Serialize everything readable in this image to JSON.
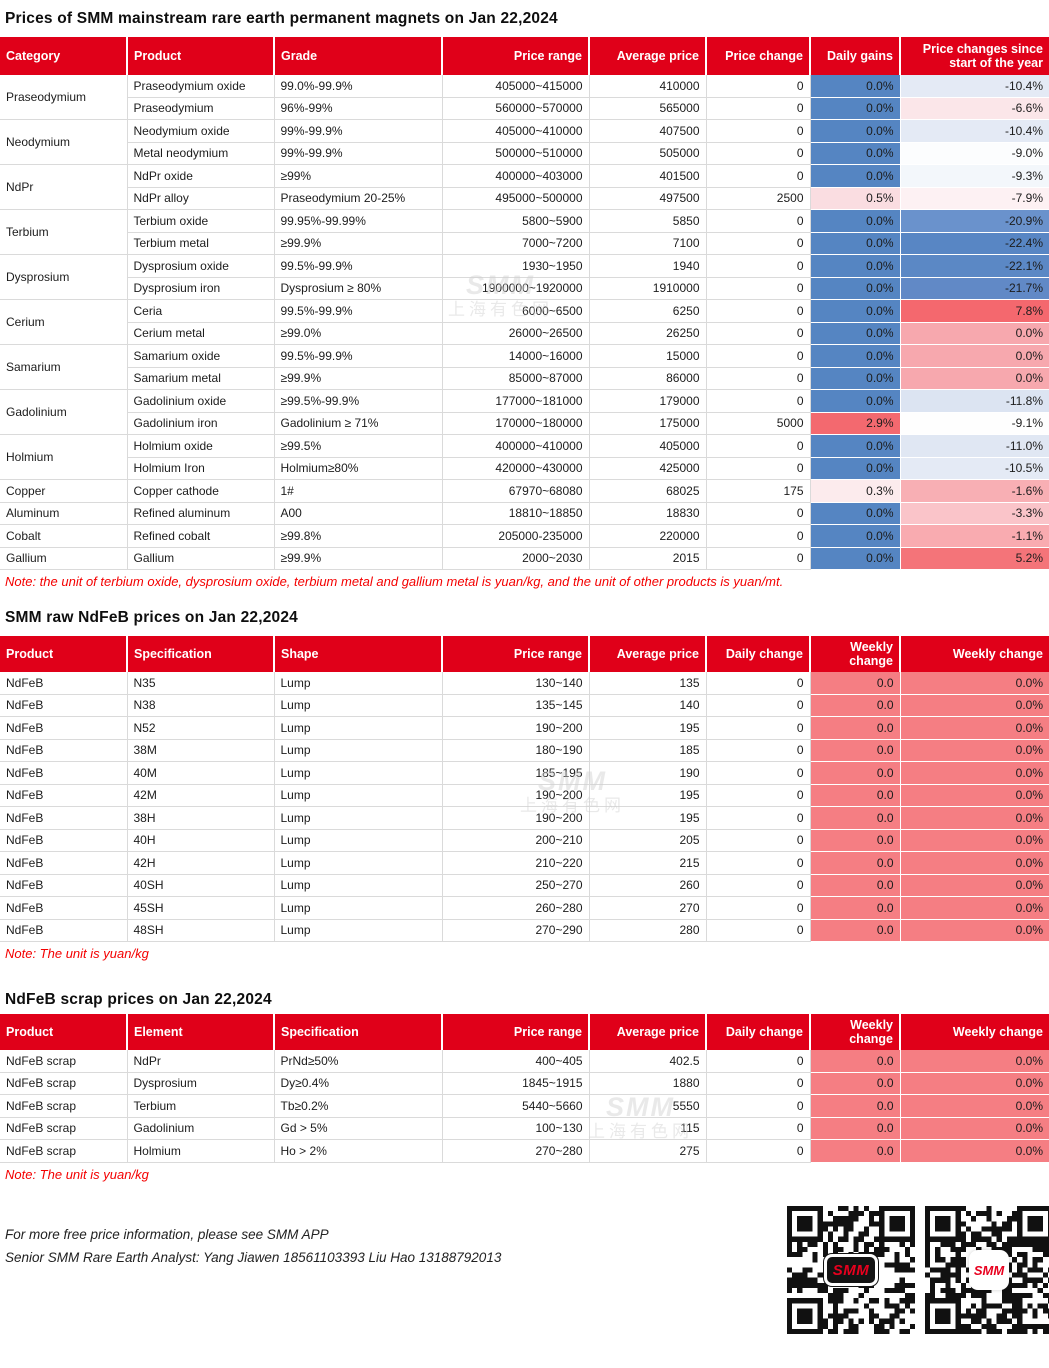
{
  "colors": {
    "header_bg": "#E00019",
    "blue_cell": "#5585C2",
    "salmon_cell": "#F57E83",
    "note_red": "#F40000"
  },
  "watermark": {
    "line1": "SMM",
    "line2": "上海有色网"
  },
  "table1": {
    "title": "Prices of SMM mainstream rare earth permanent magnets on Jan 22,2024",
    "columns": [
      "Category",
      "Product",
      "Grade",
      "Price range",
      "Average price",
      "Price change",
      "Daily gains",
      "Price changes since start of the year"
    ],
    "rows": [
      {
        "category": "Praseodymium",
        "rowspan": 2,
        "product": "Praseodymium oxide",
        "grade": "99.0%-99.9%",
        "price_range": "405000~415000",
        "average_price": "410000",
        "price_change": "0",
        "daily_gain": "0.0%",
        "daily_gain_color": "#5585C2",
        "ytd_change": "-10.4%",
        "ytd_color": "#E4EAF5"
      },
      {
        "product": "Praseodymium",
        "grade": "96%-99%",
        "price_range": "560000~570000",
        "average_price": "565000",
        "price_change": "0",
        "daily_gain": "0.0%",
        "daily_gain_color": "#5585C2",
        "ytd_change": "-6.6%",
        "ytd_color": "#FBE6E9"
      },
      {
        "category": "Neodymium",
        "rowspan": 2,
        "product": "Neodymium oxide",
        "grade": "99%-99.9%",
        "price_range": "405000~410000",
        "average_price": "407500",
        "price_change": "0",
        "daily_gain": "0.0%",
        "daily_gain_color": "#5585C2",
        "ytd_change": "-10.4%",
        "ytd_color": "#E4EAF5"
      },
      {
        "product": "Metal neodymium",
        "grade": "99%-99.9%",
        "price_range": "500000~510000",
        "average_price": "505000",
        "price_change": "0",
        "daily_gain": "0.0%",
        "daily_gain_color": "#5585C2",
        "ytd_change": "-9.0%",
        "ytd_color": "#FCFDFE"
      },
      {
        "category": "NdPr",
        "rowspan": 2,
        "product": "NdPr oxide",
        "grade": "≥99%",
        "price_range": "400000~403000",
        "average_price": "401500",
        "price_change": "0",
        "daily_gain": "0.0%",
        "daily_gain_color": "#5585C2",
        "ytd_change": "-9.3%",
        "ytd_color": "#F3F7FB"
      },
      {
        "product": "NdPr alloy",
        "grade": "Praseodymium 20-25%",
        "price_range": "495000~500000",
        "average_price": "497500",
        "price_change": "2500",
        "daily_gain": "0.5%",
        "daily_gain_color": "#FADDE1",
        "ytd_change": "-7.9%",
        "ytd_color": "#FDF1F3"
      },
      {
        "category": "Terbium",
        "rowspan": 2,
        "product": "Terbium oxide",
        "grade": "99.95%-99.99%",
        "price_range": "5800~5900",
        "average_price": "5850",
        "price_change": "0",
        "daily_gain": "0.0%",
        "daily_gain_color": "#5585C2",
        "ytd_change": "-20.9%",
        "ytd_color": "#6A92CC"
      },
      {
        "product": "Terbium metal",
        "grade": "≥99.9%",
        "price_range": "7000~7200",
        "average_price": "7100",
        "price_change": "0",
        "daily_gain": "0.0%",
        "daily_gain_color": "#5585C2",
        "ytd_change": "-22.4%",
        "ytd_color": "#5886C4"
      },
      {
        "category": "Dysprosium",
        "rowspan": 2,
        "product": "Dysprosium oxide",
        "grade": "99.5%-99.9%",
        "price_range": "1930~1950",
        "average_price": "1940",
        "price_change": "0",
        "daily_gain": "0.0%",
        "daily_gain_color": "#5585C2",
        "ytd_change": "-22.1%",
        "ytd_color": "#5B88C5"
      },
      {
        "product": "Dysprosium iron",
        "grade": "Dysprosium ≥ 80%",
        "price_range": "1900000~1920000",
        "average_price": "1910000",
        "price_change": "0",
        "daily_gain": "0.0%",
        "daily_gain_color": "#5585C2",
        "ytd_change": "-21.7%",
        "ytd_color": "#6189C6"
      },
      {
        "category": "Cerium",
        "rowspan": 2,
        "product": "Ceria",
        "grade": "99.5%-99.9%",
        "price_range": "6000~6500",
        "average_price": "6250",
        "price_change": "0",
        "daily_gain": "0.0%",
        "daily_gain_color": "#5585C2",
        "ytd_change": "7.8%",
        "ytd_color": "#F4686E"
      },
      {
        "product": "Cerium metal",
        "grade": "≥99.0%",
        "price_range": "26000~26500",
        "average_price": "26250",
        "price_change": "0",
        "daily_gain": "0.0%",
        "daily_gain_color": "#5585C2",
        "ytd_change": "0.0%",
        "ytd_color": "#F7A8AE"
      },
      {
        "category": "Samarium",
        "rowspan": 2,
        "product": "Samarium oxide",
        "grade": "99.5%-99.9%",
        "price_range": "14000~16000",
        "average_price": "15000",
        "price_change": "0",
        "daily_gain": "0.0%",
        "daily_gain_color": "#5585C2",
        "ytd_change": "0.0%",
        "ytd_color": "#F7A8AE"
      },
      {
        "product": "Samarium metal",
        "grade": "≥99.9%",
        "price_range": "85000~87000",
        "average_price": "86000",
        "price_change": "0",
        "daily_gain": "0.0%",
        "daily_gain_color": "#5585C2",
        "ytd_change": "0.0%",
        "ytd_color": "#F7A8AE"
      },
      {
        "category": "Gadolinium",
        "rowspan": 2,
        "product": "Gadolinium oxide",
        "grade": "≥99.5%-99.9%",
        "price_range": "177000~181000",
        "average_price": "179000",
        "price_change": "0",
        "daily_gain": "0.0%",
        "daily_gain_color": "#5585C2",
        "ytd_change": "-11.8%",
        "ytd_color": "#DCE4F2"
      },
      {
        "product": "Gadolinium iron",
        "grade": "Gadolinium ≥ 71%",
        "price_range": "170000~180000",
        "average_price": "175000",
        "price_change": "5000",
        "daily_gain": "2.9%",
        "daily_gain_color": "#F3696F",
        "ytd_change": "-9.1%",
        "ytd_color": "#FEFEFE"
      },
      {
        "category": "Holmium",
        "rowspan": 2,
        "product": "Holmium oxide",
        "grade": "≥99.5%",
        "price_range": "400000~410000",
        "average_price": "405000",
        "price_change": "0",
        "daily_gain": "0.0%",
        "daily_gain_color": "#5585C2",
        "ytd_change": "-11.0%",
        "ytd_color": "#E0E7F3"
      },
      {
        "product": "Holmium Iron",
        "grade": "Holmium≥80%",
        "price_range": "420000~430000",
        "average_price": "425000",
        "price_change": "0",
        "daily_gain": "0.0%",
        "daily_gain_color": "#5585C2",
        "ytd_change": "-10.5%",
        "ytd_color": "#E4EAF5"
      },
      {
        "category": "Copper",
        "rowspan": 1,
        "product": "Copper cathode",
        "grade": "1#",
        "price_range": "67970~68080",
        "average_price": "68025",
        "price_change": "175",
        "daily_gain": "0.3%",
        "daily_gain_color": "#FCEBED",
        "ytd_change": "-1.6%",
        "ytd_color": "#F8AFB4"
      },
      {
        "category": "Aluminum",
        "rowspan": 1,
        "product": "Refined aluminum",
        "grade": "A00",
        "price_range": "18810~18850",
        "average_price": "18830",
        "price_change": "0",
        "daily_gain": "0.0%",
        "daily_gain_color": "#5585C2",
        "ytd_change": "-3.3%",
        "ytd_color": "#FAC4C9"
      },
      {
        "category": "Cobalt",
        "rowspan": 1,
        "product": "Refined cobalt",
        "grade": "≥99.8%",
        "price_range": "205000-235000",
        "average_price": "220000",
        "price_change": "0",
        "daily_gain": "0.0%",
        "daily_gain_color": "#5585C2",
        "ytd_change": "-1.1%",
        "ytd_color": "#F9ABB0"
      },
      {
        "category": "Gallium",
        "rowspan": 1,
        "product": "Gallium",
        "grade": "≥99.9%",
        "price_range": "2000~2030",
        "average_price": "2015",
        "price_change": "0",
        "daily_gain": "0.0%",
        "daily_gain_color": "#5585C2",
        "ytd_change": "5.2%",
        "ytd_color": "#F47479"
      }
    ],
    "note": "Note: the unit of terbium oxide, dysprosium oxide, terbium metal and gallium metal is yuan/kg, and the unit of other products is yuan/mt."
  },
  "table2": {
    "title": "SMM raw NdFeB prices on Jan 22,2024",
    "columns": [
      "Product",
      "Specification",
      "Shape",
      "Price range",
      "Average price",
      "Daily change",
      "Weekly change",
      "Weekly change"
    ],
    "rows": [
      {
        "product": "NdFeB",
        "specification": "N35",
        "shape": "Lump",
        "price_range": "130~140",
        "average_price": "135",
        "daily_change": "0",
        "weekly_change": "0.0",
        "weekly_change_pct": "0.0%"
      },
      {
        "product": "NdFeB",
        "specification": "N38",
        "shape": "Lump",
        "price_range": "135~145",
        "average_price": "140",
        "daily_change": "0",
        "weekly_change": "0.0",
        "weekly_change_pct": "0.0%"
      },
      {
        "product": "NdFeB",
        "specification": "N52",
        "shape": "Lump",
        "price_range": "190~200",
        "average_price": "195",
        "daily_change": "0",
        "weekly_change": "0.0",
        "weekly_change_pct": "0.0%"
      },
      {
        "product": "NdFeB",
        "specification": "38M",
        "shape": "Lump",
        "price_range": "180~190",
        "average_price": "185",
        "daily_change": "0",
        "weekly_change": "0.0",
        "weekly_change_pct": "0.0%"
      },
      {
        "product": "NdFeB",
        "specification": "40M",
        "shape": "Lump",
        "price_range": "185~195",
        "average_price": "190",
        "daily_change": "0",
        "weekly_change": "0.0",
        "weekly_change_pct": "0.0%"
      },
      {
        "product": "NdFeB",
        "specification": "42M",
        "shape": "Lump",
        "price_range": "190~200",
        "average_price": "195",
        "daily_change": "0",
        "weekly_change": "0.0",
        "weekly_change_pct": "0.0%"
      },
      {
        "product": "NdFeB",
        "specification": "38H",
        "shape": "Lump",
        "price_range": "190~200",
        "average_price": "195",
        "daily_change": "0",
        "weekly_change": "0.0",
        "weekly_change_pct": "0.0%"
      },
      {
        "product": "NdFeB",
        "specification": "40H",
        "shape": "Lump",
        "price_range": "200~210",
        "average_price": "205",
        "daily_change": "0",
        "weekly_change": "0.0",
        "weekly_change_pct": "0.0%"
      },
      {
        "product": "NdFeB",
        "specification": "42H",
        "shape": "Lump",
        "price_range": "210~220",
        "average_price": "215",
        "daily_change": "0",
        "weekly_change": "0.0",
        "weekly_change_pct": "0.0%"
      },
      {
        "product": "NdFeB",
        "specification": "40SH",
        "shape": "Lump",
        "price_range": "250~270",
        "average_price": "260",
        "daily_change": "0",
        "weekly_change": "0.0",
        "weekly_change_pct": "0.0%"
      },
      {
        "product": "NdFeB",
        "specification": "45SH",
        "shape": "Lump",
        "price_range": "260~280",
        "average_price": "270",
        "daily_change": "0",
        "weekly_change": "0.0",
        "weekly_change_pct": "0.0%"
      },
      {
        "product": "NdFeB",
        "specification": "48SH",
        "shape": "Lump",
        "price_range": "270~290",
        "average_price": "280",
        "daily_change": "0",
        "weekly_change": "0.0",
        "weekly_change_pct": "0.0%"
      }
    ],
    "note": "Note: The unit is yuan/kg"
  },
  "table3": {
    "title": "NdFeB scrap prices on Jan 22,2024",
    "columns": [
      "Product",
      "Element",
      "Specification",
      "Price range",
      "Average price",
      "Daily change",
      "Weekly change",
      "Weekly change"
    ],
    "rows": [
      {
        "product": "NdFeB scrap",
        "element": "NdPr",
        "specification": "PrNd≥50%",
        "price_range": "400~405",
        "average_price": "402.5",
        "daily_change": "0",
        "weekly_change": "0.0",
        "weekly_change_pct": "0.0%"
      },
      {
        "product": "NdFeB scrap",
        "element": "Dysprosium",
        "specification": "Dy≥0.4%",
        "price_range": "1845~1915",
        "average_price": "1880",
        "daily_change": "0",
        "weekly_change": "0.0",
        "weekly_change_pct": "0.0%"
      },
      {
        "product": "NdFeB scrap",
        "element": "Terbium",
        "specification": "Tb≥0.2%",
        "price_range": "5440~5660",
        "average_price": "5550",
        "daily_change": "0",
        "weekly_change": "0.0",
        "weekly_change_pct": "0.0%"
      },
      {
        "product": "NdFeB scrap",
        "element": "Gadolinium",
        "specification": "Gd > 5%",
        "price_range": "100~130",
        "average_price": "115",
        "daily_change": "0",
        "weekly_change": "0.0",
        "weekly_change_pct": "0.0%"
      },
      {
        "product": "NdFeB scrap",
        "element": "Holmium",
        "specification": "Ho > 2%",
        "price_range": "270~280",
        "average_price": "275",
        "daily_change": "0",
        "weekly_change": "0.0",
        "weekly_change_pct": "0.0%"
      }
    ],
    "note": "Note: The unit is yuan/kg"
  },
  "footer": {
    "line1": "For more free price information, please see SMM APP",
    "line2": "Senior SMM Rare Earth Analyst: Yang Jiawen 18561103393 Liu Hao 13188792013"
  },
  "qr": {
    "logo1": "SMM",
    "logo2": "SMM"
  }
}
